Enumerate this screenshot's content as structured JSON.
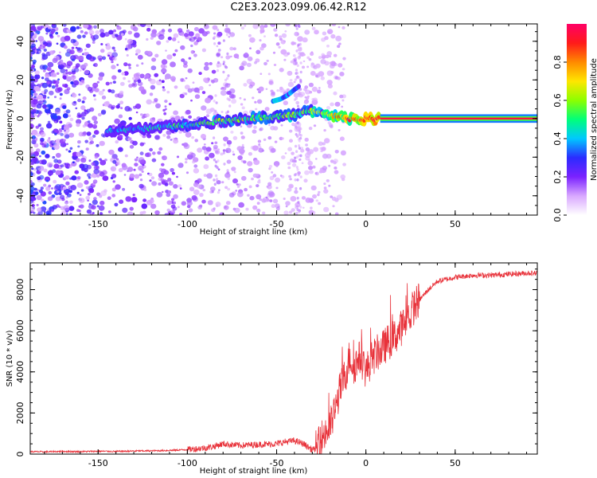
{
  "title": "C2E3.2023.099.06.42.R12",
  "chart_data": [
    {
      "type": "heatmap",
      "xlabel": "Height of straight line (km)",
      "ylabel": "Frequency (Hz)",
      "xlim": [
        -188,
        96
      ],
      "ylim": [
        -50,
        49
      ],
      "xticks": [
        -150,
        -100,
        -50,
        0,
        50
      ],
      "yticks": [
        -40,
        -20,
        0,
        20,
        40
      ],
      "colorbar": {
        "label": "Normalized spectral amplitude",
        "range": [
          0,
          1
        ],
        "ticks": [
          0.0,
          0.2,
          0.4,
          0.6,
          0.8
        ],
        "colors": [
          "#ffffff",
          "#d9a8ff",
          "#7b22ff",
          "#2b2bff",
          "#00c8ff",
          "#00ff7a",
          "#8cff00",
          "#ffe600",
          "#ff8a00",
          "#ff1a1a",
          "#ff0066"
        ]
      },
      "ridge": {
        "x": [
          -145,
          -130,
          -110,
          -95,
          -80,
          -65,
          -50,
          -40,
          -35,
          -30,
          -25,
          -20,
          -15,
          -10,
          -5,
          0,
          10,
          30,
          60,
          96
        ],
        "y": [
          -6,
          -5.5,
          -4,
          -3,
          -1,
          0,
          1,
          2,
          3,
          4,
          3,
          2,
          1,
          0,
          -1,
          0,
          0,
          0,
          0,
          0
        ],
        "amplitude": [
          0.3,
          0.35,
          0.4,
          0.45,
          0.5,
          0.5,
          0.45,
          0.55,
          0.5,
          0.6,
          0.55,
          0.7,
          0.75,
          0.8,
          0.85,
          0.9,
          0.92,
          0.92,
          0.92,
          0.92
        ]
      },
      "branch": {
        "x": [
          -52,
          -48,
          -44,
          -40,
          -37
        ],
        "y": [
          9,
          10,
          12,
          15,
          17
        ],
        "amplitude": [
          0.4,
          0.45,
          0.35,
          0.35,
          0.3
        ]
      }
    },
    {
      "type": "line",
      "xlabel": "Height of straight line (km)",
      "ylabel": "SNR (10 * v/v)",
      "xlim": [
        -188,
        96
      ],
      "ylim": [
        0,
        9300
      ],
      "xticks": [
        -150,
        -100,
        -50,
        0,
        50
      ],
      "yticks": [
        0,
        2000,
        4000,
        6000,
        8000
      ],
      "color": "#e8323a",
      "x": [
        -188,
        -180,
        -170,
        -160,
        -150,
        -140,
        -130,
        -120,
        -110,
        -100,
        -90,
        -85,
        -80,
        -75,
        -70,
        -60,
        -50,
        -45,
        -40,
        -35,
        -30,
        -27,
        -25,
        -23,
        -21,
        -19,
        -17,
        -15,
        -13,
        -11,
        -9,
        -7,
        -5,
        -3,
        -1,
        0,
        3,
        6,
        9,
        12,
        15,
        18,
        21,
        24,
        27,
        30,
        35,
        40,
        50,
        60,
        70,
        80,
        90,
        96
      ],
      "y": [
        120,
        110,
        130,
        120,
        140,
        130,
        150,
        160,
        180,
        220,
        300,
        380,
        500,
        450,
        420,
        470,
        500,
        600,
        650,
        500,
        200,
        300,
        800,
        1000,
        1200,
        1600,
        2200,
        3000,
        3500,
        4000,
        4800,
        4200,
        4500,
        4700,
        4300,
        4000,
        4600,
        4900,
        5100,
        5400,
        5600,
        5900,
        6300,
        6700,
        7200,
        7500,
        8000,
        8400,
        8600,
        8700,
        8700,
        8750,
        8800,
        8800
      ]
    }
  ]
}
